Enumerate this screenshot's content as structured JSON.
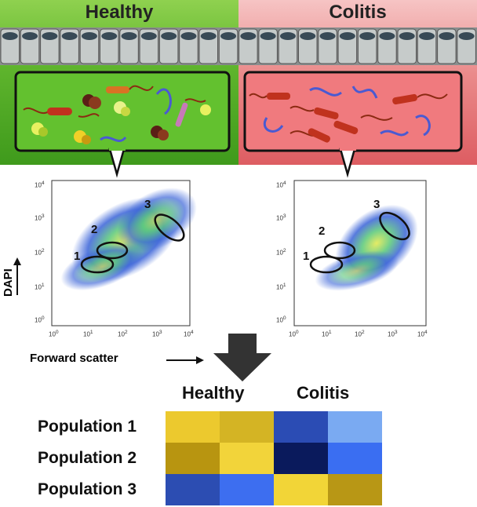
{
  "panels": {
    "healthy": {
      "title": "Healthy"
    },
    "colitis": {
      "title": "Colitis"
    }
  },
  "flow_plots": {
    "tick_labels": [
      "10",
      "10",
      "10",
      "10",
      "10"
    ],
    "tick_exponents": [
      "0",
      "1",
      "2",
      "3",
      "4"
    ],
    "gate_labels": [
      "1",
      "2",
      "3"
    ]
  },
  "axes": {
    "y_label": "DAPI",
    "x_label": "Forward scatter"
  },
  "heatmap": {
    "group_labels": [
      "Healthy",
      "Colitis"
    ],
    "row_labels": [
      "Population 1",
      "Population 2",
      "Population 3"
    ],
    "colors": [
      [
        "#ecc92e",
        "#d4b424",
        "#2b4cb4",
        "#7aaaf2"
      ],
      [
        "#b89510",
        "#f2d43a",
        "#0a1a5c",
        "#3a6ef2"
      ],
      [
        "#2c4db2",
        "#3d6ef0",
        "#f2d537",
        "#b89715"
      ]
    ]
  },
  "colors": {
    "healthy_bg": "#5fb52d",
    "colitis_bg": "#e98686",
    "arrow": "#333333"
  }
}
